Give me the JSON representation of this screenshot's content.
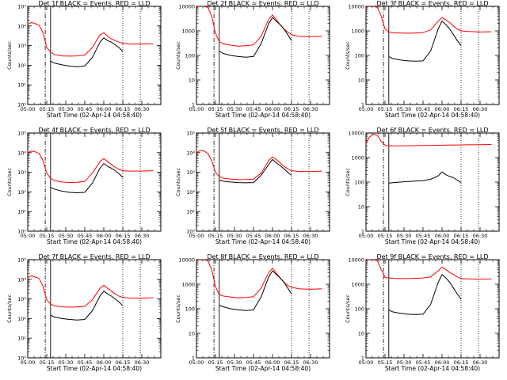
{
  "chart_data": [
    {
      "type": "line",
      "title": "Det 1f BLACK = Events, RED = LLD",
      "xlabel": "Start Time (02-Apr-14 04:58:40)",
      "ylabel": "Counts/sec",
      "yscale": "log",
      "ylim": [
        1,
        100000
      ],
      "yticks": [
        "10⁰",
        "10¹",
        "10²",
        "10³",
        "10⁴",
        "10⁵"
      ],
      "xlim_hours": [
        5.0,
        6.75
      ],
      "xticks": [
        "05:00",
        "05:15",
        "05:30",
        "05:45",
        "06:00",
        "06:15",
        "06:30"
      ],
      "markers": {
        "dashdot": 5.23,
        "solid": 5.3,
        "dotted": [
          6.25,
          6.48
        ]
      },
      "series": [
        {
          "color": "#ff0000",
          "x": [
            5.0,
            5.05,
            5.1,
            5.15,
            5.2,
            5.25,
            5.3,
            5.35,
            5.45,
            5.55,
            5.65,
            5.75,
            5.85,
            5.95,
            6.0,
            6.05,
            6.1,
            6.15,
            6.2,
            6.25,
            6.35,
            6.5,
            6.65
          ],
          "y": [
            12000,
            15000,
            13000,
            11000,
            4500,
            800,
            480,
            350,
            300,
            290,
            300,
            330,
            800,
            3500,
            4500,
            3000,
            2200,
            1800,
            1500,
            1300,
            1200,
            1200,
            1250
          ]
        },
        {
          "color": "#000000",
          "x": [
            5.3,
            5.35,
            5.45,
            5.55,
            5.65,
            5.75,
            5.85,
            5.95,
            6.0,
            6.05,
            6.1,
            6.15,
            6.2,
            6.25
          ],
          "y": [
            160,
            130,
            105,
            90,
            85,
            90,
            250,
            1500,
            2500,
            1800,
            1500,
            1100,
            800,
            500
          ]
        }
      ]
    },
    {
      "type": "line",
      "title": "Det 2f BLACK = Events, RED = LLD",
      "xlabel": "Start Time (02-Apr-14 04:58:40)",
      "ylabel": "Counts/sec",
      "yscale": "log",
      "ylim": [
        1,
        10000
      ],
      "yticks": [
        "1",
        "10",
        "100",
        "1000",
        "10000"
      ],
      "xlim_hours": [
        5.0,
        6.75
      ],
      "xticks": [
        "05:00",
        "05:15",
        "05:30",
        "05:45",
        "06:00",
        "06:15",
        "06:30"
      ],
      "markers": {
        "dashdot": 5.23,
        "solid": 5.3,
        "dotted": [
          6.25,
          6.48
        ]
      },
      "series": [
        {
          "color": "#ff0000",
          "x": [
            5.0,
            5.05,
            5.1,
            5.15,
            5.2,
            5.25,
            5.3,
            5.35,
            5.45,
            5.55,
            5.65,
            5.75,
            5.85,
            5.95,
            6.0,
            6.05,
            6.1,
            6.15,
            6.2,
            6.25,
            6.35,
            6.5,
            6.65
          ],
          "y": [
            9000,
            11000,
            10000,
            9000,
            4000,
            800,
            360,
            300,
            260,
            240,
            250,
            270,
            600,
            3000,
            4500,
            2800,
            1800,
            1200,
            900,
            700,
            600,
            580,
            600
          ]
        },
        {
          "color": "#000000",
          "x": [
            5.3,
            5.35,
            5.45,
            5.55,
            5.65,
            5.75,
            5.85,
            5.95,
            6.0,
            6.05,
            6.1,
            6.15,
            6.2,
            6.25
          ],
          "y": [
            150,
            120,
            100,
            90,
            85,
            90,
            300,
            2000,
            3500,
            2500,
            1800,
            1200,
            700,
            400
          ]
        }
      ]
    },
    {
      "type": "line",
      "title": "Det 3f BLACK = Events, RED = LLD",
      "xlabel": "Start Time (02-Apr-14 04:58:40)",
      "ylabel": "Counts/sec",
      "yscale": "log",
      "ylim": [
        1,
        10000
      ],
      "yticks": [
        "1",
        "10",
        "100",
        "1000",
        "10000"
      ],
      "xlim_hours": [
        5.0,
        6.75
      ],
      "xticks": [
        "05:00",
        "05:15",
        "05:30",
        "05:45",
        "06:00",
        "06:15",
        "06:30"
      ],
      "markers": {
        "dashdot": 5.23,
        "solid": 5.3,
        "dotted": [
          6.25,
          6.48
        ]
      },
      "series": [
        {
          "color": "#ff0000",
          "x": [
            5.0,
            5.05,
            5.1,
            5.15,
            5.2,
            5.25,
            5.3,
            5.35,
            5.45,
            5.55,
            5.65,
            5.75,
            5.85,
            5.95,
            6.0,
            6.05,
            6.1,
            6.15,
            6.2,
            6.25,
            6.35,
            6.5,
            6.65
          ],
          "y": [
            9000,
            11000,
            10000,
            9000,
            4000,
            1200,
            900,
            850,
            820,
            800,
            820,
            850,
            1100,
            2500,
            3500,
            2800,
            2200,
            1600,
            1200,
            1000,
            950,
            900,
            920
          ]
        },
        {
          "color": "#000000",
          "x": [
            5.3,
            5.35,
            5.45,
            5.55,
            5.65,
            5.75,
            5.85,
            5.95,
            6.0,
            6.05,
            6.1,
            6.15,
            6.2,
            6.25
          ],
          "y": [
            90,
            75,
            65,
            60,
            58,
            60,
            150,
            1200,
            2500,
            1800,
            1200,
            700,
            400,
            250
          ]
        }
      ]
    },
    {
      "type": "line",
      "title": "Det 4f BLACK = Events, RED = LLD",
      "xlabel": "Start Time (02-Apr-14 04:58:40)",
      "ylabel": "Counts/sec",
      "yscale": "log",
      "ylim": [
        1,
        100000
      ],
      "yticks": [
        "10⁰",
        "10¹",
        "10²",
        "10³",
        "10⁴",
        "10⁵"
      ],
      "xlim_hours": [
        5.0,
        6.75
      ],
      "xticks": [
        "05:00",
        "05:15",
        "05:30",
        "05:45",
        "06:00",
        "06:15",
        "06:30"
      ],
      "markers": {
        "dashdot": 5.23,
        "solid": 5.3,
        "dotted": [
          6.25,
          6.48
        ]
      },
      "series": [
        {
          "color": "#ff0000",
          "x": [
            5.0,
            5.05,
            5.1,
            5.15,
            5.2,
            5.25,
            5.3,
            5.35,
            5.45,
            5.55,
            5.65,
            5.75,
            5.85,
            5.95,
            6.0,
            6.05,
            6.1,
            6.15,
            6.2,
            6.25,
            6.35,
            6.5,
            6.65
          ],
          "y": [
            10000,
            12000,
            11000,
            9000,
            4000,
            900,
            500,
            380,
            320,
            300,
            310,
            340,
            900,
            3500,
            5000,
            3500,
            2500,
            1800,
            1400,
            1200,
            1150,
            1150,
            1200
          ]
        },
        {
          "color": "#000000",
          "x": [
            5.3,
            5.35,
            5.45,
            5.55,
            5.65,
            5.75,
            5.85,
            5.95,
            6.0,
            6.05,
            6.1,
            6.15,
            6.2,
            6.25
          ],
          "y": [
            170,
            140,
            110,
            95,
            90,
            95,
            280,
            1600,
            2800,
            2000,
            1600,
            1200,
            850,
            550
          ]
        }
      ]
    },
    {
      "type": "line",
      "title": "Det 5f BLACK = Events, RED = LLD",
      "xlabel": "Start Time (02-Apr-14 04:58:40)",
      "ylabel": "Counts/sec",
      "yscale": "log",
      "ylim": [
        1,
        100000
      ],
      "yticks": [
        "10⁰",
        "10¹",
        "10²",
        "10³",
        "10⁴",
        "10⁵"
      ],
      "xlim_hours": [
        5.0,
        6.75
      ],
      "xticks": [
        "05:00",
        "05:15",
        "05:30",
        "05:45",
        "06:00",
        "06:15",
        "06:30"
      ],
      "markers": {
        "dashdot": 5.23,
        "solid": 5.3,
        "dotted": [
          6.25,
          6.48
        ]
      },
      "series": [
        {
          "color": "#ff0000",
          "x": [
            5.0,
            5.05,
            5.1,
            5.15,
            5.2,
            5.25,
            5.3,
            5.35,
            5.45,
            5.55,
            5.65,
            5.75,
            5.85,
            5.95,
            6.0,
            6.05,
            6.1,
            6.15,
            6.2,
            6.25,
            6.35,
            6.5,
            6.65
          ],
          "y": [
            10000,
            13000,
            12000,
            9000,
            4000,
            1000,
            600,
            500,
            450,
            420,
            430,
            450,
            900,
            4000,
            6000,
            4500,
            3000,
            2000,
            1500,
            1200,
            1100,
            1100,
            1150
          ]
        },
        {
          "color": "#000000",
          "x": [
            5.3,
            5.35,
            5.45,
            5.55,
            5.65,
            5.75,
            5.85,
            5.95,
            6.0,
            6.05,
            6.1,
            6.15,
            6.2,
            6.25
          ],
          "y": [
            400,
            350,
            320,
            300,
            290,
            300,
            700,
            2500,
            4500,
            3000,
            2200,
            1500,
            1000,
            700
          ]
        }
      ]
    },
    {
      "type": "line",
      "title": "Det 6f BLACK = Events, RED = LLD",
      "xlabel": "Start Time (02-Apr-14 04:58:40)",
      "ylabel": "Counts/sec",
      "yscale": "log",
      "ylim": [
        1,
        10000
      ],
      "yticks": [
        "1",
        "10",
        "100",
        "1000",
        "10000"
      ],
      "xlim_hours": [
        5.0,
        6.75
      ],
      "xticks": [
        "05:00",
        "05:15",
        "05:30",
        "05:45",
        "06:00",
        "06:15",
        "06:30"
      ],
      "markers": {
        "dashdot": 5.23,
        "solid": 5.3,
        "dotted": [
          6.25,
          6.48
        ]
      },
      "series": [
        {
          "color": "#ff0000",
          "x": [
            5.0,
            5.05,
            5.1,
            5.15,
            5.2,
            5.25,
            5.3,
            5.45,
            5.6,
            5.75,
            5.9,
            6.05,
            6.2,
            6.35,
            6.5,
            6.65
          ],
          "y": [
            4000,
            7000,
            9000,
            8000,
            4500,
            3200,
            3000,
            3000,
            3050,
            3100,
            3150,
            3200,
            3250,
            3300,
            3350,
            3400
          ]
        },
        {
          "color": "#000000",
          "x": [
            5.3,
            5.35,
            5.45,
            5.55,
            5.65,
            5.75,
            5.85,
            5.95,
            6.0,
            6.05,
            6.1,
            6.15,
            6.2,
            6.25
          ],
          "y": [
            90,
            95,
            100,
            105,
            110,
            115,
            130,
            180,
            260,
            200,
            170,
            150,
            120,
            95
          ]
        }
      ]
    },
    {
      "type": "line",
      "title": "Det 7f BLACK = Events, RED = LLD",
      "xlabel": "Start Time (02-Apr-14 04:58:40)",
      "ylabel": "Counts/sec",
      "yscale": "log",
      "ylim": [
        1,
        100000
      ],
      "yticks": [
        "10⁰",
        "10¹",
        "10²",
        "10³",
        "10⁴",
        "10⁵"
      ],
      "xlim_hours": [
        5.0,
        6.75
      ],
      "xticks": [
        "05:00",
        "05:15",
        "05:30",
        "05:45",
        "06:00",
        "06:15",
        "06:30"
      ],
      "markers": {
        "dashdot": 5.23,
        "solid": 5.3,
        "dotted": [
          6.25,
          6.48
        ]
      },
      "series": [
        {
          "color": "#ff0000",
          "x": [
            5.0,
            5.05,
            5.1,
            5.15,
            5.2,
            5.25,
            5.3,
            5.35,
            5.45,
            5.55,
            5.65,
            5.75,
            5.85,
            5.95,
            6.0,
            6.05,
            6.1,
            6.15,
            6.2,
            6.25,
            6.35,
            6.5,
            6.65
          ],
          "y": [
            12000,
            15000,
            13000,
            11000,
            4500,
            900,
            550,
            450,
            400,
            380,
            390,
            420,
            900,
            3500,
            5000,
            3500,
            2500,
            1800,
            1400,
            1200,
            1100,
            1100,
            1150
          ]
        },
        {
          "color": "#000000",
          "x": [
            5.3,
            5.35,
            5.45,
            5.55,
            5.65,
            5.75,
            5.85,
            5.95,
            6.0,
            6.05,
            6.1,
            6.15,
            6.2,
            6.25
          ],
          "y": [
            150,
            120,
            100,
            90,
            85,
            90,
            250,
            1400,
            2500,
            1800,
            1400,
            1000,
            700,
            450
          ]
        }
      ]
    },
    {
      "type": "line",
      "title": "Det 8f BLACK = Events, RED = LLD",
      "xlabel": "Start Time (02-Apr-14 04:58:40)",
      "ylabel": "Counts/sec",
      "yscale": "log",
      "ylim": [
        1,
        10000
      ],
      "yticks": [
        "1",
        "10",
        "100",
        "1000",
        "10000"
      ],
      "xlim_hours": [
        5.0,
        6.75
      ],
      "xticks": [
        "05:00",
        "05:15",
        "05:30",
        "05:45",
        "06:00",
        "06:15",
        "06:30"
      ],
      "markers": {
        "dashdot": 5.23,
        "solid": 5.3,
        "dotted": [
          6.25,
          6.48
        ]
      },
      "series": [
        {
          "color": "#ff0000",
          "x": [
            5.0,
            5.05,
            5.1,
            5.15,
            5.2,
            5.25,
            5.3,
            5.35,
            5.45,
            5.55,
            5.65,
            5.75,
            5.85,
            5.95,
            6.0,
            6.05,
            6.1,
            6.15,
            6.2,
            6.25,
            6.35,
            6.5,
            6.65
          ],
          "y": [
            9000,
            11000,
            10000,
            9000,
            4000,
            800,
            380,
            330,
            300,
            280,
            290,
            310,
            700,
            3000,
            4500,
            2800,
            1800,
            1200,
            900,
            750,
            650,
            620,
            650
          ]
        },
        {
          "color": "#000000",
          "x": [
            5.3,
            5.35,
            5.45,
            5.55,
            5.65,
            5.75,
            5.85,
            5.95,
            6.0,
            6.05,
            6.1,
            6.15,
            6.2,
            6.25
          ],
          "y": [
            140,
            120,
            100,
            90,
            85,
            90,
            300,
            2000,
            3500,
            2500,
            1800,
            1200,
            700,
            400
          ]
        }
      ]
    },
    {
      "type": "line",
      "title": "Det 9f BLACK = Events, RED = LLD",
      "xlabel": "Start Time (02-Apr-14 04:58:40)",
      "ylabel": "Counts/sec",
      "yscale": "log",
      "ylim": [
        1,
        10000
      ],
      "yticks": [
        "1",
        "10",
        "100",
        "1000",
        "10000"
      ],
      "xlim_hours": [
        5.0,
        6.75
      ],
      "xticks": [
        "05:00",
        "05:15",
        "05:30",
        "05:45",
        "06:00",
        "06:15",
        "06:30"
      ],
      "markers": {
        "dashdot": 5.23,
        "solid": 5.3,
        "dotted": [
          6.25,
          6.48
        ]
      },
      "series": [
        {
          "color": "#ff0000",
          "x": [
            5.0,
            5.05,
            5.1,
            5.15,
            5.2,
            5.25,
            5.3,
            5.35,
            5.45,
            5.55,
            5.65,
            5.75,
            5.85,
            5.95,
            6.0,
            6.05,
            6.1,
            6.15,
            6.2,
            6.25,
            6.35,
            6.5,
            6.65
          ],
          "y": [
            9000,
            11000,
            10000,
            9000,
            4000,
            1900,
            1800,
            1750,
            1700,
            1700,
            1750,
            1800,
            2000,
            3500,
            5000,
            4000,
            3000,
            2500,
            2000,
            1700,
            1650,
            1600,
            1650
          ]
        },
        {
          "color": "#000000",
          "x": [
            5.3,
            5.35,
            5.45,
            5.55,
            5.65,
            5.75,
            5.85,
            5.95,
            6.0,
            6.05,
            6.1,
            6.15,
            6.2,
            6.25
          ],
          "y": [
            90,
            75,
            65,
            60,
            58,
            60,
            150,
            1200,
            2500,
            1800,
            1200,
            700,
            400,
            250
          ]
        }
      ]
    }
  ]
}
